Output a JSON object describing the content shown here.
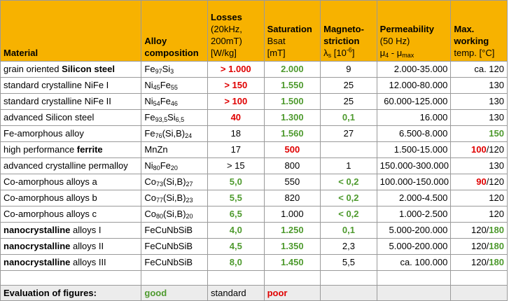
{
  "header": {
    "material": "Material",
    "alloy": [
      "Alloy",
      "composition"
    ],
    "losses": [
      "Losses",
      "(20kHz,",
      "200mT)",
      "[W/kg]"
    ],
    "saturation": [
      "Saturation",
      "Bsat",
      "[mT]"
    ],
    "magneto": [
      "Magneto-",
      "striction",
      "λ",
      "s",
      " [10",
      "-6",
      "]"
    ],
    "permeability": [
      "Permeability",
      "(50 Hz)",
      "μ",
      "4",
      " - μ",
      "max"
    ],
    "maxtemp": [
      "Max.",
      "working",
      "temp. [°C]"
    ]
  },
  "rows": [
    {
      "pre": "grain oriented ",
      "bold": "Silicon steel",
      "post": "",
      "alloy": [
        [
          "Fe",
          ""
        ],
        [
          "97",
          "s"
        ],
        [
          "Si",
          ""
        ],
        [
          "3",
          "s"
        ]
      ],
      "losses": "> 1.000",
      "losses_c": "red",
      "sat": "2.000",
      "sat_c": "green",
      "magneto": "9",
      "magneto_c": "",
      "perm": "2.000-35.000",
      "t1": "ca. 120",
      "t1_c": "",
      "t2": ""
    },
    {
      "pre": "standard crystalline NiFe I",
      "bold": "",
      "post": "",
      "alloy": [
        [
          "Ni",
          ""
        ],
        [
          "45",
          "s"
        ],
        [
          "Fe",
          ""
        ],
        [
          "55",
          "s"
        ]
      ],
      "losses": "> 150",
      "losses_c": "red",
      "sat": "1.550",
      "sat_c": "green",
      "magneto": "25",
      "magneto_c": "",
      "perm": "12.000-80.000",
      "t1": "130",
      "t1_c": "",
      "t2": ""
    },
    {
      "pre": "standard crystalline NiFe II",
      "bold": "",
      "post": "",
      "alloy": [
        [
          "Ni",
          ""
        ],
        [
          "54",
          "s"
        ],
        [
          "Fe",
          ""
        ],
        [
          "46",
          "s"
        ]
      ],
      "losses": "> 100",
      "losses_c": "red",
      "sat": "1.500",
      "sat_c": "green",
      "magneto": "25",
      "magneto_c": "",
      "perm": "60.000-125.000",
      "t1": "130",
      "t1_c": "",
      "t2": ""
    },
    {
      "pre": "advanced Silicon steel",
      "bold": "",
      "post": "",
      "alloy": [
        [
          "Fe",
          ""
        ],
        [
          "93,5",
          "s"
        ],
        [
          "Si",
          ""
        ],
        [
          "6,5",
          "s"
        ]
      ],
      "losses": "40",
      "losses_c": "red",
      "sat": "1.300",
      "sat_c": "green",
      "magneto": "0,1",
      "magneto_c": "green",
      "perm": "16.000",
      "t1": "130",
      "t1_c": "",
      "t2": ""
    },
    {
      "pre": "Fe-amorphous alloy",
      "bold": "",
      "post": "",
      "alloy": [
        [
          "Fe",
          ""
        ],
        [
          "76",
          "s"
        ],
        [
          "(Si,B)",
          ""
        ],
        [
          "24",
          "s"
        ]
      ],
      "losses": "18",
      "losses_c": "",
      "sat": "1.560",
      "sat_c": "green",
      "magneto": "27",
      "magneto_c": "",
      "perm": "6.500-8.000",
      "t1": "150",
      "t1_c": "green",
      "t2": ""
    },
    {
      "pre": "high performance ",
      "bold": "ferrite",
      "post": "",
      "alloy": [
        [
          "MnZn",
          ""
        ]
      ],
      "losses": "17",
      "losses_c": "",
      "sat": "500",
      "sat_c": "red",
      "magneto": "",
      "magneto_c": "",
      "perm": "1.500-15.000",
      "t1": "100",
      "t1_c": "red",
      "t2": "/120"
    },
    {
      "pre": "advanced crystalline permalloy",
      "bold": "",
      "post": "",
      "alloy": [
        [
          "Ni",
          ""
        ],
        [
          "80",
          "s"
        ],
        [
          "Fe",
          ""
        ],
        [
          "20",
          "s"
        ]
      ],
      "losses": "> 15",
      "losses_c": "",
      "sat": "800",
      "sat_c": "",
      "magneto": "1",
      "magneto_c": "",
      "perm": "150.000-300.000",
      "t1": "130",
      "t1_c": "",
      "t2": ""
    },
    {
      "pre": "Co-amorphous alloys a",
      "bold": "",
      "post": "",
      "alloy": [
        [
          "Co",
          ""
        ],
        [
          "73",
          "s"
        ],
        [
          "(Si,B)",
          ""
        ],
        [
          "27",
          "s"
        ]
      ],
      "losses": "5,0",
      "losses_c": "green",
      "sat": "550",
      "sat_c": "",
      "magneto": "< 0,2",
      "magneto_c": "green",
      "perm": "100.000-150.000",
      "t1": "90",
      "t1_c": "red",
      "t2": "/120"
    },
    {
      "pre": "Co-amorphous alloys b",
      "bold": "",
      "post": "",
      "alloy": [
        [
          "Co",
          ""
        ],
        [
          "77",
          "s"
        ],
        [
          "(Si,B)",
          ""
        ],
        [
          "23",
          "s"
        ]
      ],
      "losses": "5,5",
      "losses_c": "green",
      "sat": "820",
      "sat_c": "",
      "magneto": "< 0,2",
      "magneto_c": "green",
      "perm": "2.000-4.500",
      "t1": "120",
      "t1_c": "",
      "t2": ""
    },
    {
      "pre": "Co-amorphous alloys c",
      "bold": "",
      "post": "",
      "alloy": [
        [
          "Co",
          ""
        ],
        [
          "80",
          "s"
        ],
        [
          "(Si,B)",
          ""
        ],
        [
          "20",
          "s"
        ]
      ],
      "losses": "6,5",
      "losses_c": "green",
      "sat": "1.000",
      "sat_c": "",
      "magneto": "< 0,2",
      "magneto_c": "green",
      "perm": "1.000-2.500",
      "t1": "120",
      "t1_c": "",
      "t2": ""
    },
    {
      "pre": "",
      "bold": "nanocrystalline",
      "post": " alloys I",
      "alloy": [
        [
          "FeCuNbSiB",
          ""
        ]
      ],
      "losses": "4,0",
      "losses_c": "green",
      "sat": "1.250",
      "sat_c": "green",
      "magneto": "0,1",
      "magneto_c": "green",
      "perm": "5.000-200.000",
      "t1": "120/",
      "t1_c": "",
      "t2": "180"
    },
    {
      "pre": "",
      "bold": "nanocrystalline",
      "post": " alloys II",
      "alloy": [
        [
          "FeCuNbSiB",
          ""
        ]
      ],
      "losses": "4,5",
      "losses_c": "green",
      "sat": "1.350",
      "sat_c": "green",
      "magneto": "2,3",
      "magneto_c": "",
      "perm": "5.000-200.000",
      "t1": "120/",
      "t1_c": "",
      "t2": "180"
    },
    {
      "pre": "",
      "bold": "nanocrystalline",
      "post": " alloys III",
      "alloy": [
        [
          "FeCuNbSiB",
          ""
        ]
      ],
      "losses": "8,0",
      "losses_c": "green",
      "sat": "1.450",
      "sat_c": "green",
      "magneto": "5,5",
      "magneto_c": "",
      "perm": "ca. 100.000",
      "t1": "120/",
      "t1_c": "",
      "t2": "180"
    }
  ],
  "evaluation": {
    "label": "Evaluation of figures:",
    "good": "good",
    "standard": "standard",
    "poor": "poor"
  },
  "colors": {
    "header_bg": "#f7b200",
    "good": "#4e9a2e",
    "poor": "#e00000",
    "eval_bg": "#ececec"
  }
}
